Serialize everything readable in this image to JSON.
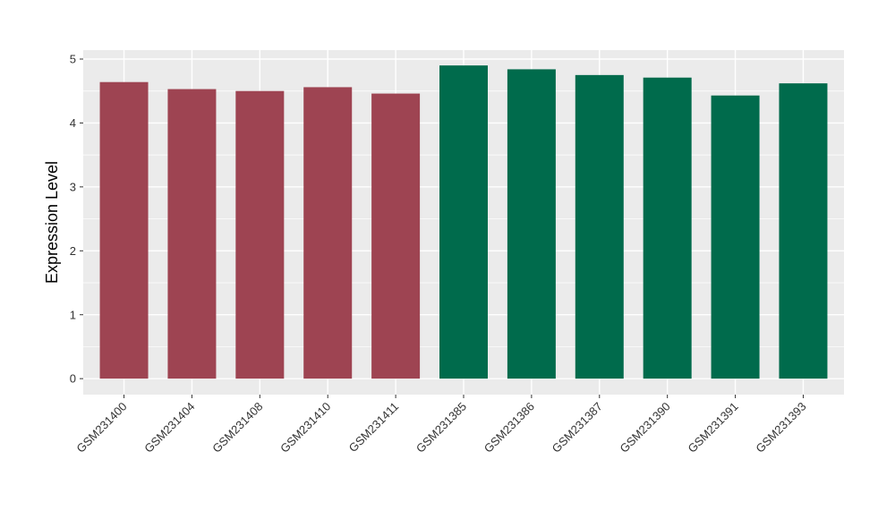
{
  "chart_data": {
    "type": "bar",
    "title": "",
    "xlabel": "",
    "ylabel": "Expression Level",
    "categories": [
      "GSM231400",
      "GSM231404",
      "GSM231408",
      "GSM231410",
      "GSM231411",
      "GSM231385",
      "GSM231386",
      "GSM231387",
      "GSM231390",
      "GSM231391",
      "GSM231393"
    ],
    "values": [
      4.64,
      4.53,
      4.5,
      4.56,
      4.46,
      4.9,
      4.84,
      4.75,
      4.71,
      4.43,
      4.62
    ],
    "bar_colors": [
      "#9E4452",
      "#9E4452",
      "#9E4452",
      "#9E4452",
      "#9E4452",
      "#006B4C",
      "#006B4C",
      "#006B4C",
      "#006B4C",
      "#006B4C",
      "#006B4C"
    ],
    "group_colors": {
      "left_group": "#9E4452",
      "right_group": "#006B4C"
    },
    "y_ticks": [
      0,
      1,
      2,
      3,
      4,
      5
    ],
    "y_minor_ticks": [
      0.5,
      1.5,
      2.5,
      3.5,
      4.5
    ],
    "ylim": [
      -0.25,
      5.14
    ],
    "x_tick_angle": 45,
    "legend": "none",
    "grid": "on",
    "panel_background": "#EBEBEB",
    "grid_color": "#FFFFFF",
    "axis_text_color": "#333333",
    "axis_title_color": "#000000"
  }
}
